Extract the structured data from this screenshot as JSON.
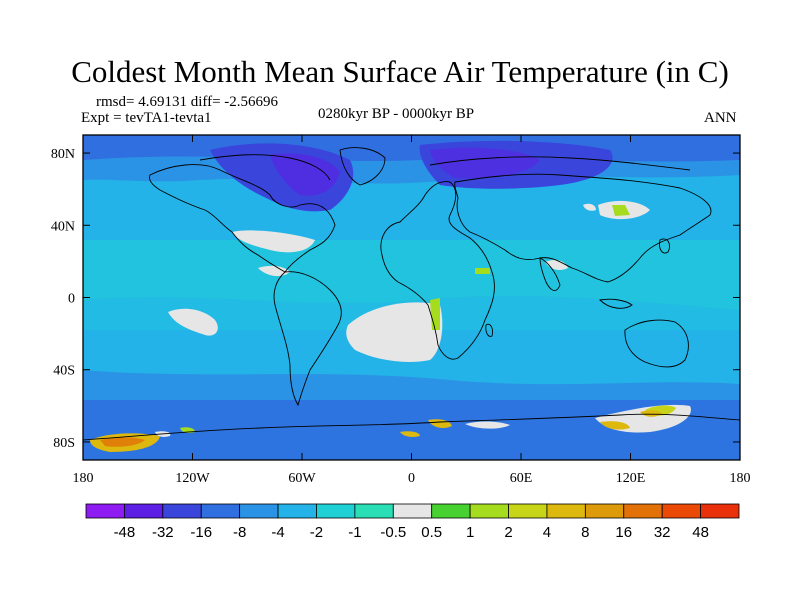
{
  "title": "Coldest Month Mean Surface Air Temperature (in C)",
  "stats": "rmsd= 4.69131 diff= -2.56696",
  "expt": "Expt = tevTA1-tevta1",
  "period": "0280kyr BP - 0000kyr BP",
  "season": "ANN",
  "map": {
    "lon_range": [
      -180,
      180
    ],
    "lat_range": [
      -90,
      90
    ],
    "lon_ticks": [
      {
        "value": -180,
        "label": "180"
      },
      {
        "value": -120,
        "label": "120W"
      },
      {
        "value": -60,
        "label": "60W"
      },
      {
        "value": 0,
        "label": "0"
      },
      {
        "value": 60,
        "label": "60E"
      },
      {
        "value": 120,
        "label": "120E"
      },
      {
        "value": 180,
        "label": "180"
      }
    ],
    "lat_ticks": [
      {
        "value": 80,
        "label": "80N"
      },
      {
        "value": 40,
        "label": "40N"
      },
      {
        "value": 0,
        "label": "0"
      },
      {
        "value": -40,
        "label": "40S"
      },
      {
        "value": -80,
        "label": "80S"
      }
    ]
  },
  "colorbar": {
    "colors": [
      "#8e1cf2",
      "#5c1fe3",
      "#3a45dc",
      "#2f6fe0",
      "#2b93e5",
      "#24b3e8",
      "#1fd0d5",
      "#2adfb5",
      "#e6e6e6",
      "#47d231",
      "#a5dc1e",
      "#c8d418",
      "#ddb80e",
      "#dd9b0b",
      "#e27208",
      "#ea4a05",
      "#e8300a"
    ],
    "labels": [
      "-48",
      "-32",
      "-16",
      "-8",
      "-4",
      "-2",
      "-1",
      "-0.5",
      "0.5",
      "1",
      "2",
      "4",
      "8",
      "16",
      "32",
      "48"
    ]
  }
}
